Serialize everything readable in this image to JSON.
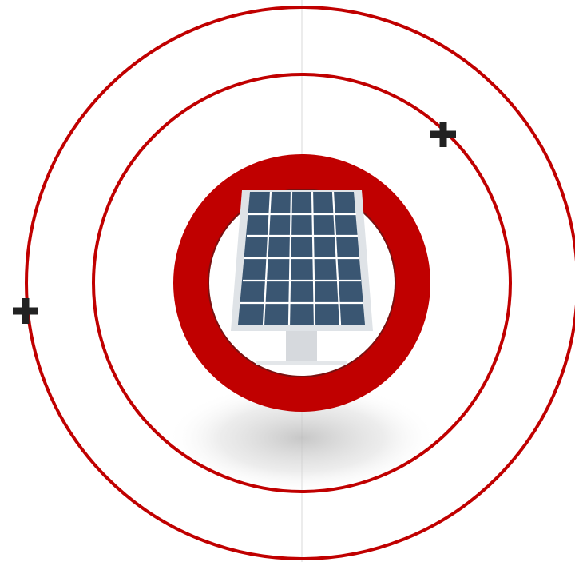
{
  "colors": {
    "ring": "#c00000",
    "plus": "#222222",
    "background": "#ffffff",
    "divider": "#ececec",
    "panel_fill": "#3a5672",
    "panel_grid": "#ffffff",
    "panel_frame": "#dfe3e7",
    "pole": "#d6d9dd",
    "shadow": "#bdbdbd"
  },
  "icons": {
    "center": "solar-panel-icon",
    "markers": [
      "plus-icon",
      "plus-icon"
    ]
  },
  "diagram": {
    "orbits": 2,
    "markers": 2,
    "panel": {
      "columns": 5,
      "rows": 6
    }
  }
}
